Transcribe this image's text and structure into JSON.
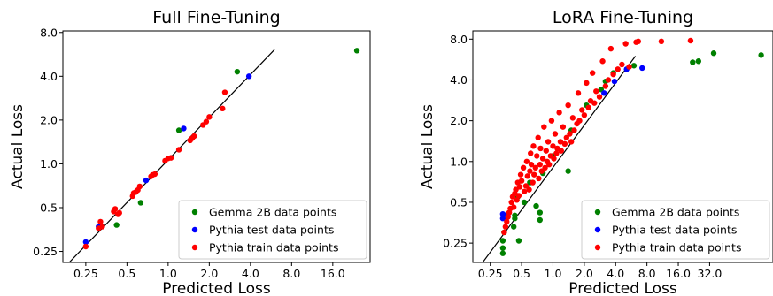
{
  "colors": {
    "gemma": "#008000",
    "pythia_test": "#0000ff",
    "pythia_train": "#ff0000",
    "fit_line": "#000000"
  },
  "chart_data": [
    {
      "type": "scatter",
      "title": "Full Fine-Tuning",
      "xlabel": "Predicted Loss",
      "ylabel": "Actual Loss",
      "xscale": "log2",
      "yscale": "log2",
      "xlim": [
        0.17,
        30
      ],
      "ylim": [
        0.21,
        8.2
      ],
      "xticks": [
        0.25,
        0.5,
        1.0,
        2.0,
        4.0,
        8.0,
        16.0
      ],
      "xtick_labels": [
        "0.25",
        "0.5",
        "1.0",
        "2.0",
        "4.0",
        "8.0",
        "16.0"
      ],
      "yticks": [
        0.25,
        0.5,
        1.0,
        2.0,
        4.0,
        8.0
      ],
      "ytick_labels": [
        "0.25",
        "0.5",
        "1.0",
        "2.0",
        "4.0",
        "8.0"
      ],
      "grid": false,
      "legend_position": "bottom-right",
      "fit_line": [
        [
          0.18,
          0.2
        ],
        [
          6.0,
          6.1
        ]
      ],
      "series": [
        {
          "name": "Gemma 2B data points",
          "color_key": "gemma",
          "points": [
            [
              24.0,
              6.0
            ],
            [
              3.2,
              4.3
            ],
            [
              1.2,
              1.7
            ],
            [
              0.63,
              0.54
            ],
            [
              0.42,
              0.38
            ]
          ]
        },
        {
          "name": "Pythia test data points",
          "color_key": "pythia_test",
          "points": [
            [
              0.25,
              0.29
            ],
            [
              0.31,
              0.37
            ],
            [
              0.69,
              0.77
            ],
            [
              1.3,
              1.75
            ],
            [
              3.9,
              4.0
            ]
          ]
        },
        {
          "name": "Pythia train data points",
          "color_key": "pythia_train",
          "points": [
            [
              0.25,
              0.27
            ],
            [
              0.31,
              0.36
            ],
            [
              0.32,
              0.4
            ],
            [
              0.33,
              0.37
            ],
            [
              0.4,
              0.47
            ],
            [
              0.41,
              0.49
            ],
            [
              0.43,
              0.45
            ],
            [
              0.44,
              0.46
            ],
            [
              0.55,
              0.6
            ],
            [
              0.56,
              0.63
            ],
            [
              0.58,
              0.64
            ],
            [
              0.6,
              0.66
            ],
            [
              0.62,
              0.7
            ],
            [
              0.75,
              0.82
            ],
            [
              0.77,
              0.84
            ],
            [
              0.8,
              0.85
            ],
            [
              0.95,
              1.05
            ],
            [
              1.0,
              1.09
            ],
            [
              1.05,
              1.1
            ],
            [
              1.2,
              1.25
            ],
            [
              1.45,
              1.45
            ],
            [
              1.5,
              1.5
            ],
            [
              1.55,
              1.55
            ],
            [
              1.8,
              1.85
            ],
            [
              1.9,
              1.95
            ],
            [
              2.0,
              2.1
            ],
            [
              2.5,
              2.4
            ],
            [
              2.6,
              3.1
            ]
          ]
        }
      ]
    },
    {
      "type": "scatter",
      "title": "LoRA Fine-Tuning",
      "xlabel": "Predicted Loss",
      "ylabel": "Actual Loss",
      "xscale": "log2",
      "yscale": "log2",
      "xlim": [
        0.17,
        130
      ],
      "ylim": [
        0.18,
        9.2
      ],
      "xticks": [
        0.25,
        0.5,
        1.0,
        2.0,
        4.0,
        8.0,
        16.0,
        32.0
      ],
      "xtick_labels": [
        "0.25",
        "0.5",
        "1.0",
        "2.0",
        "4.0",
        "8.0",
        "16.0",
        "32.0"
      ],
      "yticks": [
        0.25,
        0.5,
        1.0,
        2.0,
        4.0,
        8.0
      ],
      "ytick_labels": [
        "0.25",
        "0.5",
        "1.0",
        "2.0",
        "4.0",
        "8.0"
      ],
      "grid": false,
      "legend_position": "bottom-right",
      "fit_line": [
        [
          0.2,
          0.17
        ],
        [
          6.2,
          6.0
        ]
      ],
      "series": [
        {
          "name": "Gemma 2B data points",
          "color_key": "gemma",
          "points": [
            [
              100.0,
              6.1
            ],
            [
              35.0,
              6.3
            ],
            [
              25.0,
              5.5
            ],
            [
              22.0,
              5.4
            ],
            [
              6.0,
              5.1
            ],
            [
              3.8,
              4.5
            ],
            [
              3.2,
              3.9
            ],
            [
              2.9,
              3.4
            ],
            [
              2.1,
              2.6
            ],
            [
              1.5,
              1.7
            ],
            [
              1.0,
              1.1
            ],
            [
              0.8,
              0.82
            ],
            [
              0.6,
              0.7
            ],
            [
              0.53,
              0.5
            ],
            [
              0.46,
              0.55
            ],
            [
              0.43,
              0.4
            ],
            [
              0.33,
              0.26
            ],
            [
              0.33,
              0.23
            ],
            [
              0.33,
              0.21
            ],
            [
              0.34,
              0.3
            ],
            [
              0.43,
              0.38
            ],
            [
              0.47,
              0.26
            ],
            [
              0.42,
              0.33
            ],
            [
              0.75,
              0.37
            ],
            [
              0.75,
              0.42
            ],
            [
              0.69,
              0.47
            ],
            [
              1.4,
              0.85
            ]
          ]
        },
        {
          "name": "Pythia test data points",
          "color_key": "pythia_test",
          "points": [
            [
              0.33,
              0.38
            ],
            [
              0.33,
              0.41
            ],
            [
              0.34,
              0.4
            ],
            [
              0.37,
              0.41
            ],
            [
              3.1,
              3.2
            ],
            [
              3.9,
              3.9
            ],
            [
              5.1,
              4.8
            ],
            [
              7.2,
              4.9
            ]
          ]
        },
        {
          "name": "Pythia train data points",
          "color_key": "pythia_train",
          "points": [
            [
              0.34,
              0.3
            ],
            [
              0.35,
              0.33
            ],
            [
              0.36,
              0.36
            ],
            [
              0.37,
              0.39
            ],
            [
              0.38,
              0.42
            ],
            [
              0.39,
              0.45
            ],
            [
              0.4,
              0.5
            ],
            [
              0.41,
              0.55
            ],
            [
              0.42,
              0.46
            ],
            [
              0.43,
              0.58
            ],
            [
              0.44,
              0.62
            ],
            [
              0.45,
              0.52
            ],
            [
              0.46,
              0.7
            ],
            [
              0.47,
              0.56
            ],
            [
              0.48,
              0.65
            ],
            [
              0.49,
              0.8
            ],
            [
              0.5,
              0.72
            ],
            [
              0.52,
              0.9
            ],
            [
              0.53,
              0.6
            ],
            [
              0.55,
              0.66
            ],
            [
              0.56,
              1.0
            ],
            [
              0.57,
              0.78
            ],
            [
              0.59,
              0.62
            ],
            [
              0.6,
              0.85
            ],
            [
              0.61,
              1.15
            ],
            [
              0.62,
              0.95
            ],
            [
              0.64,
              0.7
            ],
            [
              0.65,
              1.3
            ],
            [
              0.66,
              0.8
            ],
            [
              0.68,
              0.9
            ],
            [
              0.7,
              1.1
            ],
            [
              0.72,
              1.5
            ],
            [
              0.73,
              0.75
            ],
            [
              0.75,
              0.95
            ],
            [
              0.76,
              1.25
            ],
            [
              0.78,
              0.85
            ],
            [
              0.8,
              1.05
            ],
            [
              0.82,
              1.8
            ],
            [
              0.84,
              0.9
            ],
            [
              0.86,
              1.2
            ],
            [
              0.88,
              1.0
            ],
            [
              0.9,
              1.4
            ],
            [
              0.92,
              0.95
            ],
            [
              0.95,
              1.1
            ],
            [
              0.97,
              2.0
            ],
            [
              1.0,
              1.3
            ],
            [
              1.02,
              1.05
            ],
            [
              1.05,
              1.6
            ],
            [
              1.08,
              1.15
            ],
            [
              1.1,
              1.25
            ],
            [
              1.15,
              2.3
            ],
            [
              1.18,
              1.4
            ],
            [
              1.2,
              1.2
            ],
            [
              1.25,
              1.8
            ],
            [
              1.3,
              1.35
            ],
            [
              1.35,
              1.5
            ],
            [
              1.4,
              2.6
            ],
            [
              1.45,
              1.6
            ],
            [
              1.5,
              1.4
            ],
            [
              1.55,
              2.1
            ],
            [
              1.6,
              1.7
            ],
            [
              1.7,
              1.9
            ],
            [
              1.75,
              3.2
            ],
            [
              1.8,
              2.0
            ],
            [
              1.9,
              2.4
            ],
            [
              2.0,
              2.2
            ],
            [
              2.1,
              3.8
            ],
            [
              2.2,
              2.5
            ],
            [
              2.3,
              2.8
            ],
            [
              2.4,
              4.5
            ],
            [
              2.5,
              2.7
            ],
            [
              2.6,
              3.3
            ],
            [
              2.8,
              3.0
            ],
            [
              3.0,
              5.5
            ],
            [
              3.2,
              3.6
            ],
            [
              3.4,
              4.0
            ],
            [
              3.6,
              6.8
            ],
            [
              3.8,
              4.4
            ],
            [
              4.2,
              4.8
            ],
            [
              4.6,
              5.2
            ],
            [
              5.0,
              7.4
            ],
            [
              5.4,
              5.0
            ],
            [
              6.3,
              7.6
            ],
            [
              6.6,
              7.7
            ],
            [
              11.0,
              7.7
            ],
            [
              21.0,
              7.8
            ]
          ]
        }
      ]
    }
  ]
}
